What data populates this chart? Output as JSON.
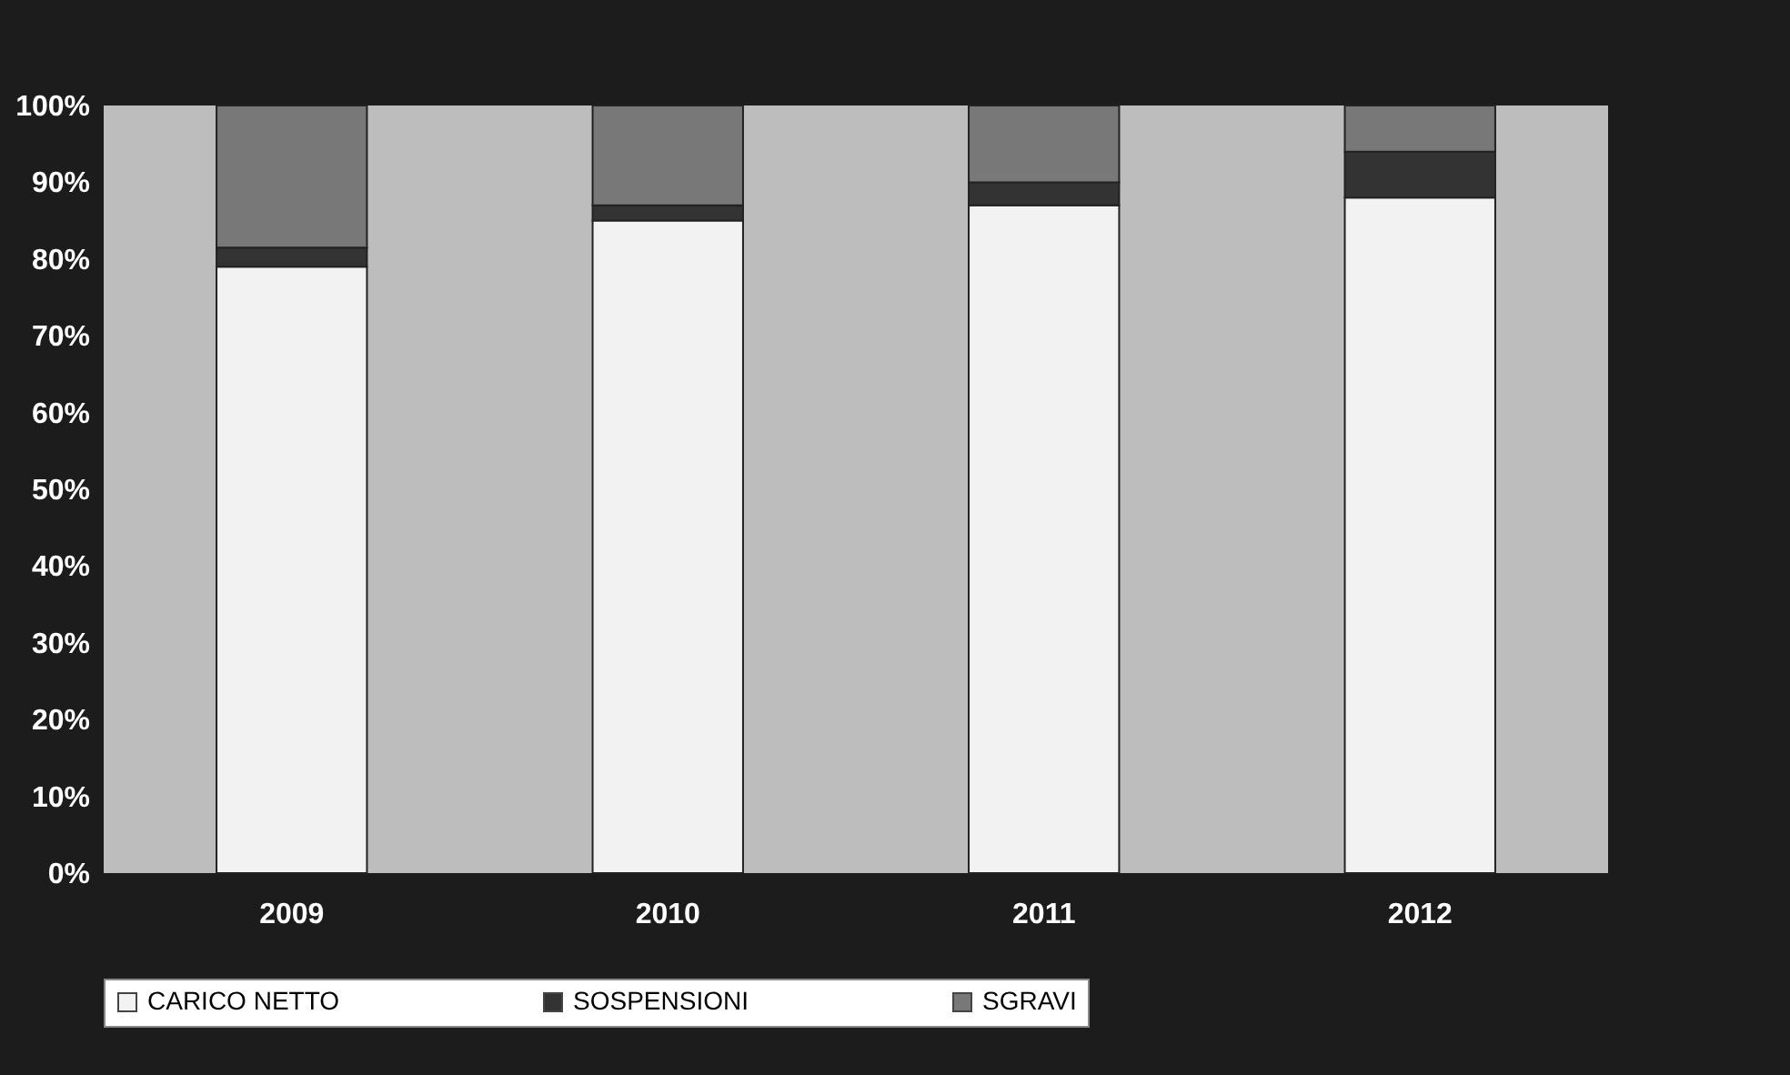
{
  "chart_data": {
    "type": "bar",
    "stacked": true,
    "categories": [
      "2009",
      "2010",
      "2011",
      "2012"
    ],
    "series": [
      {
        "name": "CARICO NETTO",
        "color": "#f2f2f2",
        "values": [
          79,
          85,
          87,
          88
        ]
      },
      {
        "name": "SOSPENSIONI",
        "color": "#333333",
        "values": [
          2.5,
          2,
          3,
          6
        ]
      },
      {
        "name": "SGRAVI",
        "color": "#787878",
        "values": [
          18.5,
          13,
          10,
          6
        ]
      }
    ],
    "ylim": [
      0,
      100
    ],
    "yticks": [
      {
        "value": 0,
        "label": "0%"
      },
      {
        "value": 10,
        "label": "10%"
      },
      {
        "value": 20,
        "label": "20%"
      },
      {
        "value": 30,
        "label": "30%"
      },
      {
        "value": 40,
        "label": "40%"
      },
      {
        "value": 50,
        "label": "50%"
      },
      {
        "value": 60,
        "label": "60%"
      },
      {
        "value": 70,
        "label": "70%"
      },
      {
        "value": 80,
        "label": "80%"
      },
      {
        "value": 90,
        "label": "90%"
      },
      {
        "value": 100,
        "label": "100%"
      }
    ],
    "grid": false,
    "legend": "bottom"
  }
}
